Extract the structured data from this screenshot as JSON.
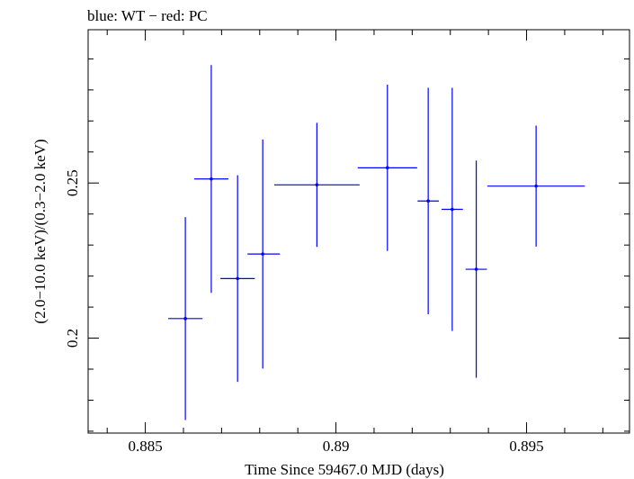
{
  "chart_data": {
    "type": "scatter",
    "title": "blue: WT − red: PC",
    "xlabel": "Time Since 59467.0 MJD (days)",
    "ylabel": "(2.0−10.0 keV)/(0.3−2.0 keV)",
    "xlim": [
      0.8835,
      0.8977
    ],
    "ylim": [
      0.1694,
      0.2994
    ],
    "xticks": [
      {
        "value": 0.885,
        "label": "0.885"
      },
      {
        "value": 0.89,
        "label": "0.89"
      },
      {
        "value": 0.895,
        "label": "0.895"
      }
    ],
    "yticks": [
      {
        "value": 0.2,
        "label": "0.2"
      },
      {
        "value": 0.25,
        "label": "0.25"
      }
    ],
    "series": [
      {
        "name": "WT",
        "color": "#0000ff",
        "points": [
          {
            "x": 0.88605,
            "xerr_lo": 0.00045,
            "xerr_hi": 0.00045,
            "y": 0.2063,
            "yerr_lo": 0.0327,
            "yerr_hi": 0.0327
          },
          {
            "x": 0.88673,
            "xerr_lo": 0.00045,
            "xerr_hi": 0.00045,
            "y": 0.2513,
            "yerr_lo": 0.0367,
            "yerr_hi": 0.0367
          },
          {
            "x": 0.88742,
            "xerr_lo": 0.00045,
            "xerr_hi": 0.00045,
            "y": 0.2192,
            "yerr_lo": 0.0333,
            "yerr_hi": 0.0333
          },
          {
            "x": 0.88808,
            "xerr_lo": 0.0004,
            "xerr_hi": 0.00045,
            "y": 0.2271,
            "yerr_lo": 0.0369,
            "yerr_hi": 0.0369
          },
          {
            "x": 0.8895,
            "xerr_lo": 0.00112,
            "xerr_hi": 0.00112,
            "y": 0.2494,
            "yerr_lo": 0.02,
            "yerr_hi": 0.02
          },
          {
            "x": 0.89135,
            "xerr_lo": 0.00078,
            "xerr_hi": 0.00078,
            "y": 0.2549,
            "yerr_lo": 0.0268,
            "yerr_hi": 0.0268
          },
          {
            "x": 0.89242,
            "xerr_lo": 0.00028,
            "xerr_hi": 0.00028,
            "y": 0.2442,
            "yerr_lo": 0.0365,
            "yerr_hi": 0.0365
          },
          {
            "x": 0.89305,
            "xerr_lo": 0.00028,
            "xerr_hi": 0.00028,
            "y": 0.2415,
            "yerr_lo": 0.0392,
            "yerr_hi": 0.0392
          },
          {
            "x": 0.89368,
            "xerr_lo": 0.00028,
            "xerr_hi": 0.00028,
            "y": 0.2222,
            "yerr_lo": 0.035,
            "yerr_hi": 0.035
          },
          {
            "x": 0.89525,
            "xerr_lo": 0.00128,
            "xerr_hi": 0.00128,
            "y": 0.249,
            "yerr_lo": 0.0195,
            "yerr_hi": 0.0195
          }
        ]
      }
    ]
  }
}
